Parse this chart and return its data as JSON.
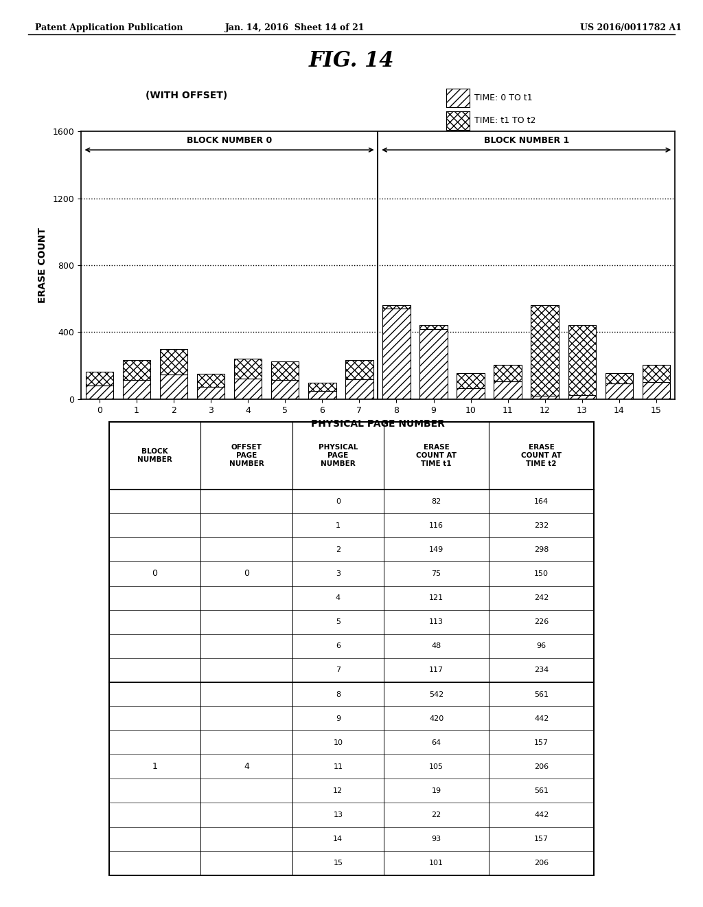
{
  "header_left": "Patent Application Publication",
  "header_mid": "Jan. 14, 2016  Sheet 14 of 21",
  "header_right": "US 2016/0011782 A1",
  "fig_title": "FIG. 14",
  "subtitle": "(WITH OFFSET)",
  "legend_labels": [
    "TIME: 0 TO t1",
    "TIME: t1 TO t2"
  ],
  "xlabel": "PHYSICAL PAGE NUMBER",
  "ylabel": "ERASE COUNT",
  "ylim": [
    0,
    1600
  ],
  "yticks": [
    0,
    400,
    800,
    1200,
    1600
  ],
  "xticks": [
    0,
    1,
    2,
    3,
    4,
    5,
    6,
    7,
    8,
    9,
    10,
    11,
    12,
    13,
    14,
    15
  ],
  "block0_label": "BLOCK NUMBER 0",
  "block1_label": "BLOCK NUMBER 1",
  "erase_count_t1": [
    82,
    116,
    149,
    75,
    121,
    113,
    48,
    117,
    542,
    420,
    64,
    105,
    19,
    22,
    93,
    101
  ],
  "erase_count_t2": [
    164,
    232,
    298,
    150,
    242,
    226,
    96,
    234,
    561,
    442,
    157,
    206,
    561,
    442,
    157,
    206
  ],
  "table_erase_t1": [
    82,
    116,
    149,
    75,
    121,
    113,
    48,
    117,
    542,
    420,
    64,
    105,
    19,
    22,
    93,
    101
  ],
  "table_erase_t2": [
    164,
    232,
    298,
    150,
    242,
    226,
    96,
    234,
    561,
    442,
    157,
    206,
    561,
    442,
    157,
    206
  ],
  "col_headers": [
    "BLOCK\nNUMBER",
    "OFFSET\nPAGE\nNUMBER",
    "PHYSICAL\nPAGE\nNUMBER",
    "ERASE\nCOUNT AT\nTIME t1",
    "ERASE\nCOUNT AT\nTIME t2"
  ]
}
